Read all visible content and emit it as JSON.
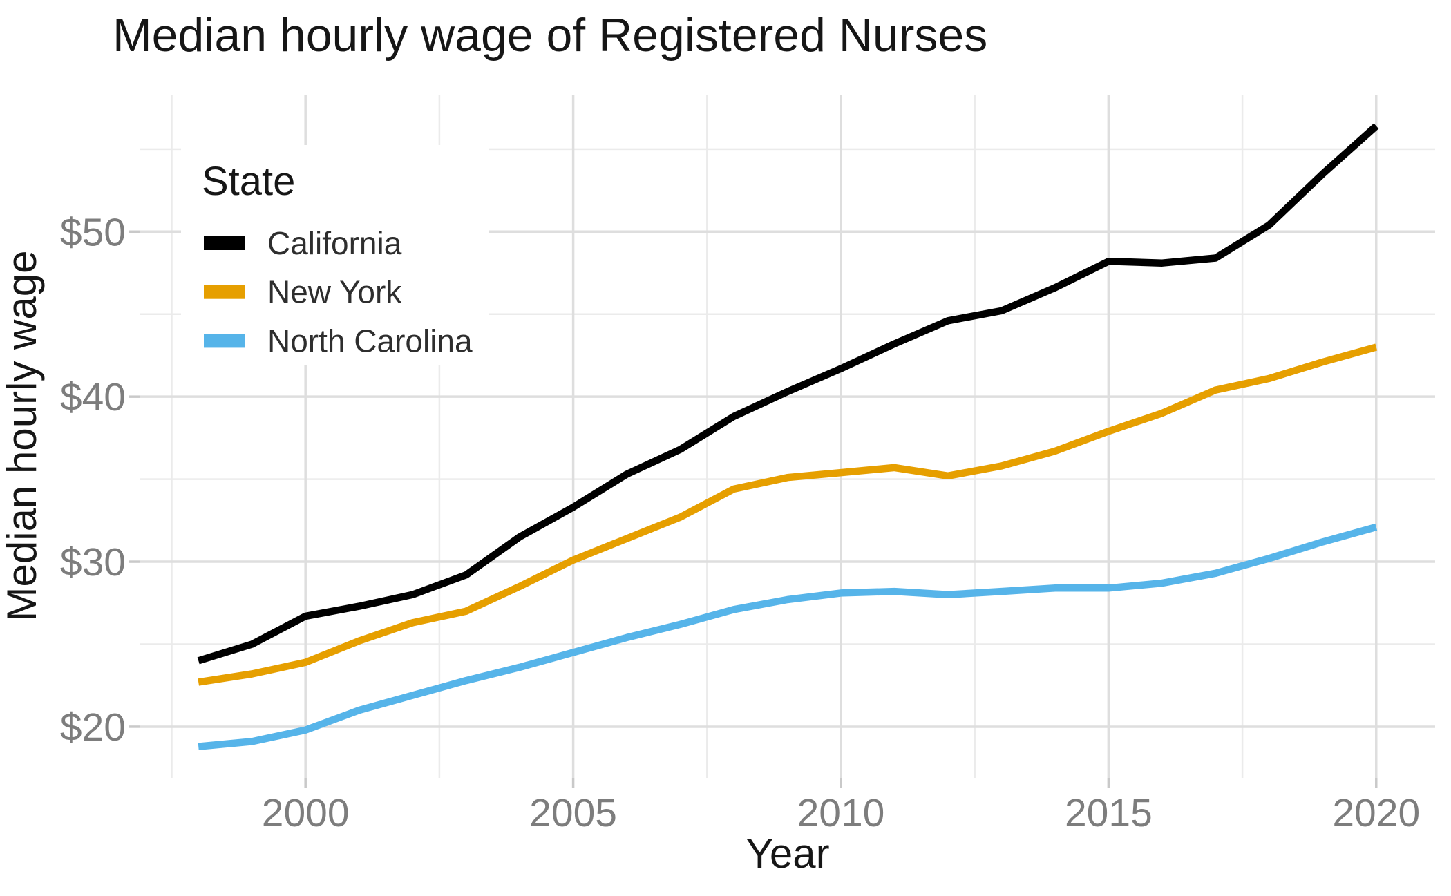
{
  "chart_data": {
    "type": "line",
    "title": "Median hourly wage of Registered Nurses",
    "xlabel": "Year",
    "ylabel": "Median hourly wage",
    "legend_title": "State",
    "legend_position": "inside-top-left",
    "grid": "major+minor",
    "background": "#FFFFFF",
    "xlim": [
      1996.9,
      2021.1
    ],
    "ylim": [
      16.9,
      58.3
    ],
    "x_ticks": {
      "major": [
        2000,
        2005,
        2010,
        2015,
        2020
      ],
      "labels": [
        "2000",
        "2005",
        "2010",
        "2015",
        "2020"
      ],
      "minor": [
        1997.5,
        2002.5,
        2007.5,
        2012.5,
        2017.5
      ]
    },
    "y_ticks": {
      "major": [
        20,
        30,
        40,
        50
      ],
      "labels": [
        "$20",
        "$30",
        "$40",
        "$50"
      ],
      "minor": [
        25,
        35,
        45,
        55
      ]
    },
    "x": [
      1998,
      1999,
      2000,
      2001,
      2002,
      2003,
      2004,
      2005,
      2006,
      2007,
      2008,
      2009,
      2010,
      2011,
      2012,
      2013,
      2014,
      2015,
      2016,
      2017,
      2018,
      2019,
      2020
    ],
    "series": [
      {
        "name": "California",
        "color": "#000000",
        "values": [
          24.0,
          25.0,
          26.7,
          27.3,
          28.0,
          29.2,
          31.5,
          33.3,
          35.3,
          36.8,
          38.8,
          40.3,
          41.7,
          43.2,
          44.6,
          45.2,
          46.6,
          48.2,
          48.1,
          48.4,
          50.4,
          53.5,
          56.4
        ]
      },
      {
        "name": "New York",
        "color": "#E69F00",
        "values": [
          22.7,
          23.2,
          23.9,
          25.2,
          26.3,
          27.0,
          28.5,
          30.1,
          31.4,
          32.7,
          34.4,
          35.1,
          35.4,
          35.7,
          35.2,
          35.8,
          36.7,
          37.9,
          39.0,
          40.4,
          41.1,
          42.1,
          43.0
        ]
      },
      {
        "name": "North Carolina",
        "color": "#56B4E9",
        "values": [
          18.8,
          19.1,
          19.8,
          21.0,
          21.9,
          22.8,
          23.6,
          24.5,
          25.4,
          26.2,
          27.1,
          27.7,
          28.1,
          28.2,
          28.0,
          28.2,
          28.4,
          28.4,
          28.7,
          29.3,
          30.2,
          31.2,
          32.1
        ]
      }
    ]
  }
}
